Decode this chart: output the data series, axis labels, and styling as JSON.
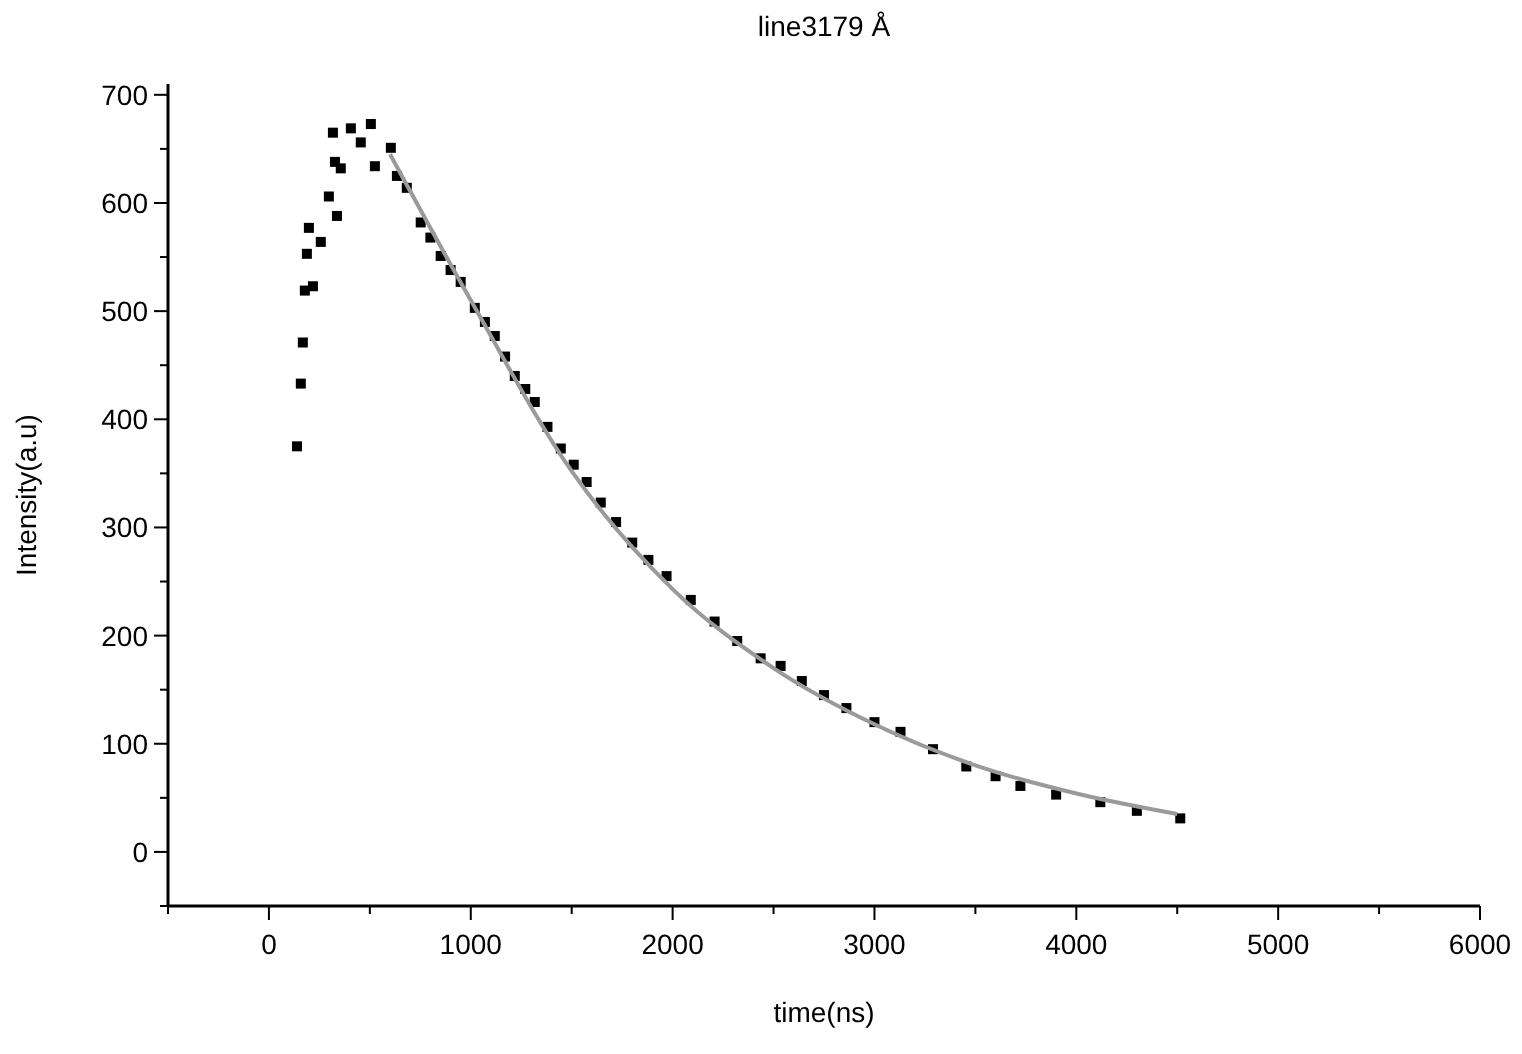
{
  "chart_data": {
    "type": "scatter",
    "title": "line3179 Å",
    "xlabel": "time(ns)",
    "ylabel": "Intensity(a.u)",
    "xlim": [
      -500,
      6000
    ],
    "ylim": [
      -50,
      710
    ],
    "xticks": [
      {
        "value": -500,
        "label": null
      },
      0,
      {
        "value": 500,
        "label": null
      },
      1000,
      {
        "value": 1500,
        "label": null
      },
      2000,
      {
        "value": 2500,
        "label": null
      },
      3000,
      {
        "value": 3500,
        "label": null
      },
      4000,
      {
        "value": 4500,
        "label": null
      },
      5000,
      {
        "value": 5500,
        "label": null
      },
      6000
    ],
    "yticks": [
      {
        "value": -50,
        "label": null
      },
      0,
      {
        "value": 50,
        "label": null
      },
      100,
      {
        "value": 150,
        "label": null
      },
      200,
      {
        "value": 250,
        "label": null
      },
      300,
      {
        "value": 350,
        "label": null
      },
      400,
      {
        "value": 450,
        "label": null
      },
      500,
      {
        "value": 550,
        "label": null
      },
      600,
      {
        "value": 650,
        "label": null
      },
      700
    ],
    "grid": false,
    "series": [
      {
        "color": "#000000",
        "marker": "square",
        "x": [
          139,
          158,
          168,
          178,
          188,
          198,
          218,
          257,
          297,
          317,
          327,
          337,
          356,
          406,
          455,
          505,
          525,
          604,
          634,
          683,
          752,
          800,
          851,
          900,
          950,
          1020,
          1070,
          1119,
          1170,
          1218,
          1270,
          1317,
          1380,
          1446,
          1510,
          1574,
          1644,
          1720,
          1800,
          1880,
          1970,
          2090,
          2208,
          2320,
          2436,
          2535,
          2640,
          2750,
          2861,
          3000,
          3129,
          3290,
          3455,
          3600,
          3723,
          3900,
          4119,
          4300,
          4515
        ],
        "values": [
          375,
          433,
          471,
          519,
          553,
          577,
          523,
          564,
          606,
          665,
          638,
          588,
          632,
          669,
          656,
          673,
          634,
          651,
          625,
          614,
          582,
          568,
          551,
          538,
          527,
          503,
          490,
          477,
          458,
          440,
          428,
          416,
          393,
          373,
          358,
          342,
          323,
          305,
          286,
          270,
          255,
          233,
          213,
          195,
          179,
          172,
          158,
          145,
          133,
          120,
          111,
          95,
          79,
          70,
          61,
          53,
          46,
          38,
          31
        ]
      },
      {
        "type": "line",
        "color": "#9a9a9a",
        "marker": "none",
        "line_style": "solid",
        "x": [
          600,
          1000,
          1500,
          2000,
          2500,
          3000,
          3500,
          4000,
          4500
        ],
        "values": [
          645,
          510,
          352,
          243,
          170,
          118,
          80,
          54,
          35
        ]
      }
    ]
  }
}
